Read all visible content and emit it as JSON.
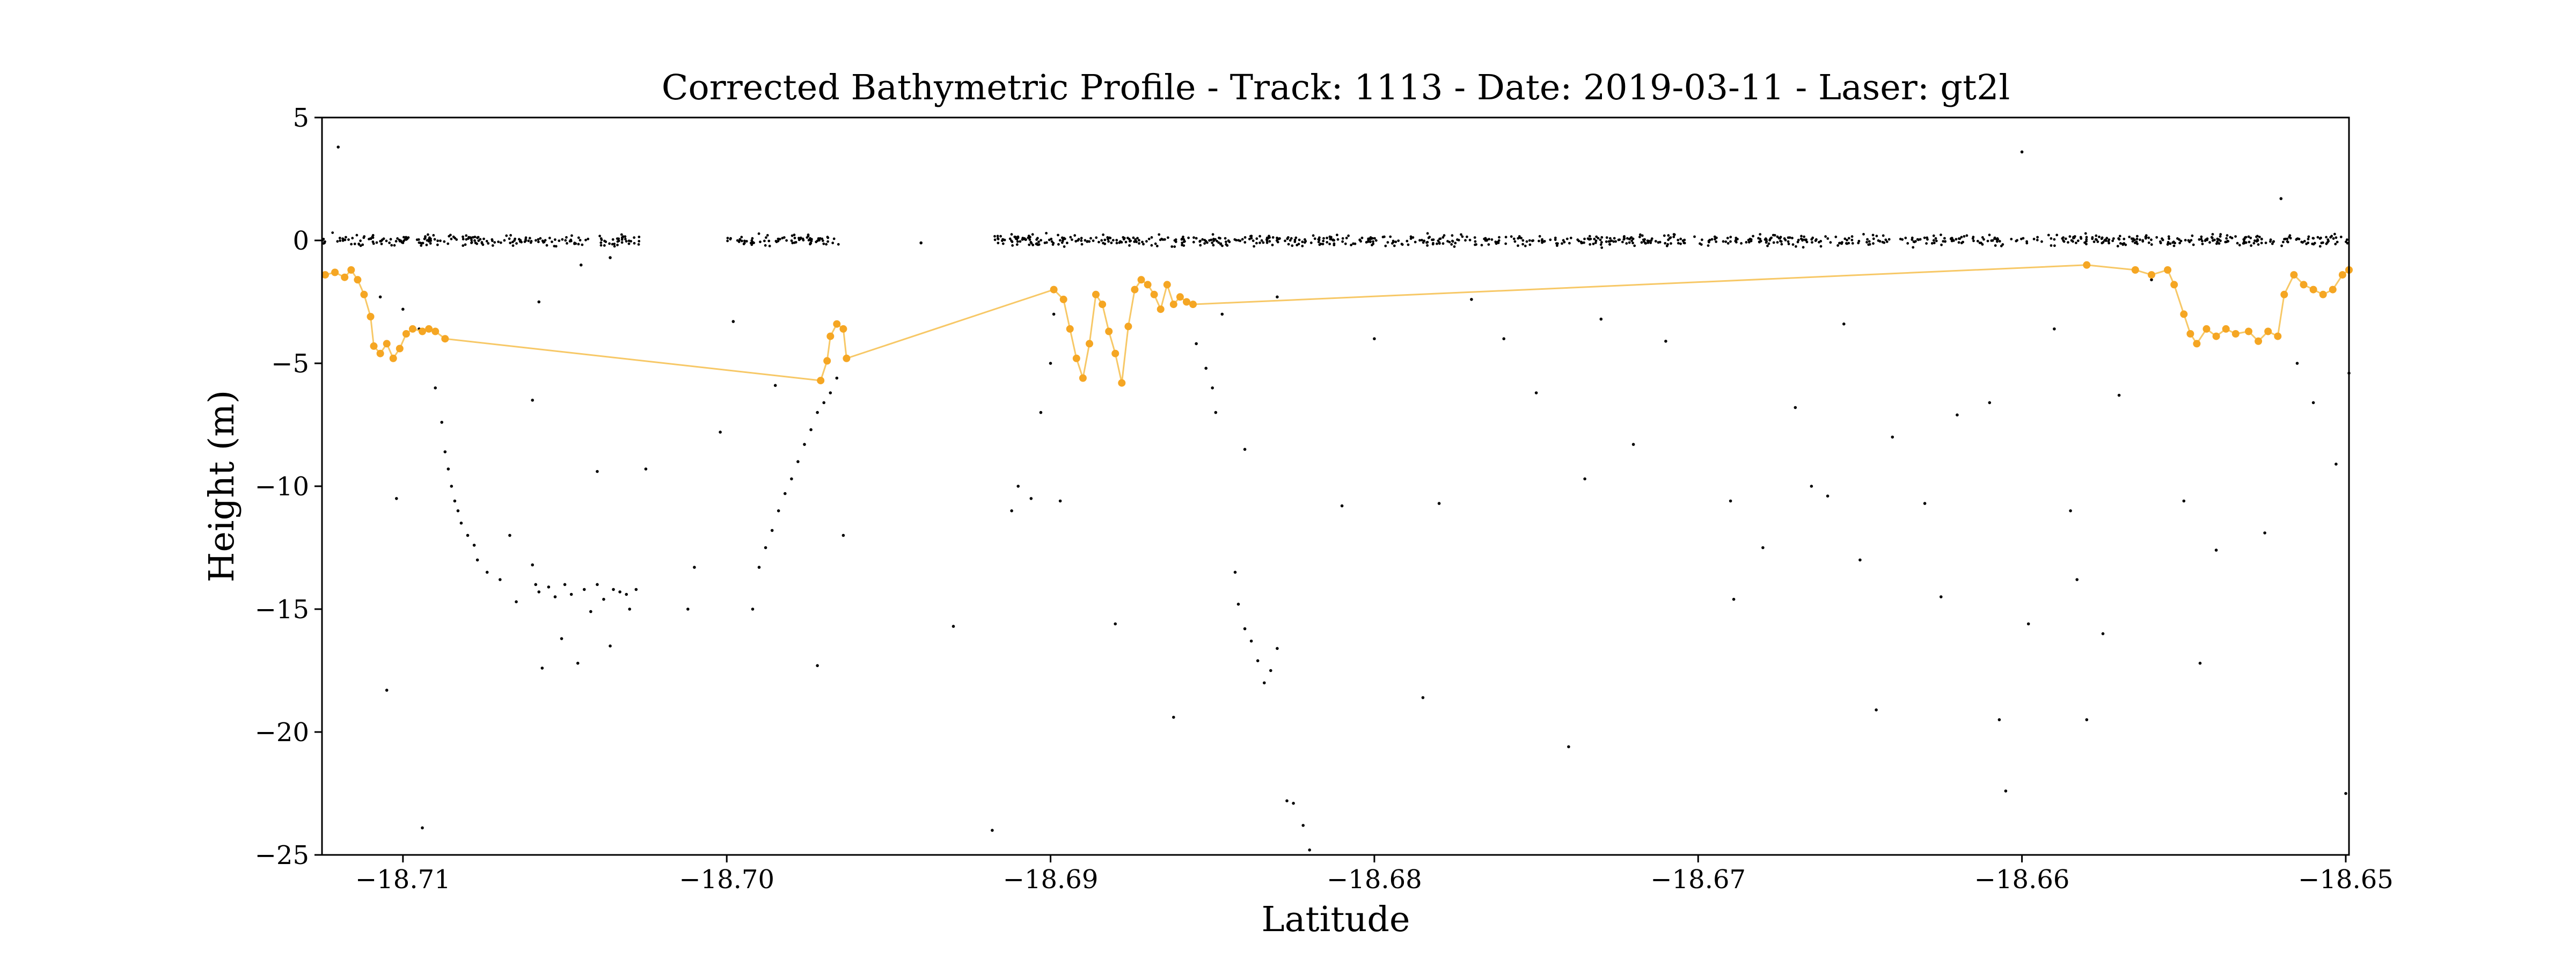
{
  "chart_data": {
    "type": "scatter",
    "title": "Corrected Bathymetric Profile - Track: 1113 - Date: 2019-03-11 - Laser: gt2l",
    "xlabel": "Latitude",
    "ylabel": "Height (m)",
    "xlim": [
      -18.7125,
      -18.6499
    ],
    "ylim": [
      -25,
      5
    ],
    "x_ticks": [
      -18.71,
      -18.7,
      -18.69,
      -18.68,
      -18.67,
      -18.66,
      -18.65
    ],
    "x_tick_labels": [
      "−18.71",
      "−18.70",
      "−18.69",
      "−18.68",
      "−18.67",
      "−18.66",
      "−18.65"
    ],
    "y_ticks": [
      5,
      0,
      -5,
      -10,
      -15,
      -20,
      -25
    ],
    "y_tick_labels": [
      "5",
      "0",
      "−5",
      "−10",
      "−15",
      "−20",
      "−25"
    ],
    "grid": false,
    "legend": "none",
    "colors": {
      "raw": "#000000",
      "bathy": "#f5a623",
      "bathy_line": "#f7c867"
    },
    "series": [
      {
        "kind": "raw photons (black dots)",
        "sea_surface_segments": [
          [
            -18.7125,
            -18.7027
          ],
          [
            -18.7,
            -18.6965
          ],
          [
            -18.6918,
            -18.6499
          ]
        ],
        "sea_surface_height": 0.0,
        "subsurface_points": [
          [
            -18.712,
            3.8
          ],
          [
            -18.7107,
            -2.3
          ],
          [
            -18.7102,
            -10.5
          ],
          [
            -18.71,
            -2.8
          ],
          [
            -18.7095,
            -3.6
          ],
          [
            -18.709,
            -6.0
          ],
          [
            -18.7088,
            -7.4
          ],
          [
            -18.7087,
            -8.6
          ],
          [
            -18.7086,
            -9.3
          ],
          [
            -18.7085,
            -10.0
          ],
          [
            -18.7084,
            -10.6
          ],
          [
            -18.7083,
            -11.0
          ],
          [
            -18.7082,
            -11.5
          ],
          [
            -18.708,
            -12.0
          ],
          [
            -18.7078,
            -12.4
          ],
          [
            -18.7077,
            -13.0
          ],
          [
            -18.7074,
            -13.5
          ],
          [
            -18.707,
            -13.8
          ],
          [
            -18.7067,
            -12.0
          ],
          [
            -18.7065,
            -14.7
          ],
          [
            -18.706,
            -13.2
          ],
          [
            -18.7059,
            -14.0
          ],
          [
            -18.7058,
            -14.3
          ],
          [
            -18.7057,
            -17.4
          ],
          [
            -18.7055,
            -14.1
          ],
          [
            -18.7053,
            -14.5
          ],
          [
            -18.7051,
            -16.2
          ],
          [
            -18.705,
            -14.0
          ],
          [
            -18.7048,
            -14.4
          ],
          [
            -18.7046,
            -17.2
          ],
          [
            -18.7044,
            -14.2
          ],
          [
            -18.7042,
            -15.1
          ],
          [
            -18.704,
            -14.0
          ],
          [
            -18.7038,
            -14.6
          ],
          [
            -18.7036,
            -16.5
          ],
          [
            -18.7035,
            -14.2
          ],
          [
            -18.7033,
            -14.3
          ],
          [
            -18.7031,
            -14.4
          ],
          [
            -18.703,
            -15.0
          ],
          [
            -18.7028,
            -14.2
          ],
          [
            -18.7025,
            -9.3
          ],
          [
            -18.704,
            -9.4
          ],
          [
            -18.706,
            -6.5
          ],
          [
            -18.7058,
            -2.5
          ],
          [
            -18.7036,
            -0.7
          ],
          [
            -18.7045,
            -1.0
          ],
          [
            -18.7105,
            -18.3
          ],
          [
            -18.7094,
            -23.9
          ],
          [
            -18.7012,
            -15.0
          ],
          [
            -18.701,
            -13.3
          ],
          [
            -18.7002,
            -7.8
          ],
          [
            -18.6998,
            -3.3
          ],
          [
            -18.6992,
            -15.0
          ],
          [
            -18.699,
            -13.3
          ],
          [
            -18.6988,
            -12.5
          ],
          [
            -18.6986,
            -11.8
          ],
          [
            -18.6984,
            -11.0
          ],
          [
            -18.6982,
            -10.3
          ],
          [
            -18.698,
            -9.7
          ],
          [
            -18.6978,
            -9.0
          ],
          [
            -18.6976,
            -8.3
          ],
          [
            -18.6974,
            -7.7
          ],
          [
            -18.6972,
            -7.0
          ],
          [
            -18.697,
            -6.6
          ],
          [
            -18.6968,
            -6.2
          ],
          [
            -18.6966,
            -5.6
          ],
          [
            -18.6964,
            -12.0
          ],
          [
            -18.6972,
            -17.3
          ],
          [
            -18.6985,
            -5.9
          ],
          [
            -18.694,
            -0.1
          ],
          [
            -18.693,
            -15.7
          ],
          [
            -18.6918,
            -24.0
          ],
          [
            -18.6912,
            -11.0
          ],
          [
            -18.691,
            -10.0
          ],
          [
            -18.6906,
            -10.5
          ],
          [
            -18.6903,
            -7.0
          ],
          [
            -18.69,
            -5.0
          ],
          [
            -18.6899,
            -3.0
          ],
          [
            -18.6897,
            -10.6
          ],
          [
            -18.688,
            -15.6
          ],
          [
            -18.6862,
            -19.4
          ],
          [
            -18.6855,
            -4.2
          ],
          [
            -18.6852,
            -5.2
          ],
          [
            -18.685,
            -6.0
          ],
          [
            -18.6849,
            -7.0
          ],
          [
            -18.6847,
            -3.0
          ],
          [
            -18.6843,
            -13.5
          ],
          [
            -18.6842,
            -14.8
          ],
          [
            -18.684,
            -15.8
          ],
          [
            -18.6838,
            -16.3
          ],
          [
            -18.6836,
            -17.1
          ],
          [
            -18.6834,
            -18.0
          ],
          [
            -18.6832,
            -17.5
          ],
          [
            -18.683,
            -16.6
          ],
          [
            -18.6827,
            -22.8
          ],
          [
            -18.6825,
            -22.9
          ],
          [
            -18.6822,
            -23.8
          ],
          [
            -18.682,
            -24.8
          ],
          [
            -18.684,
            -8.5
          ],
          [
            -18.683,
            -2.3
          ],
          [
            -18.681,
            -10.8
          ],
          [
            -18.68,
            -4.0
          ],
          [
            -18.6785,
            -18.6
          ],
          [
            -18.678,
            -10.7
          ],
          [
            -18.677,
            -2.4
          ],
          [
            -18.676,
            -4.0
          ],
          [
            -18.675,
            -6.2
          ],
          [
            -18.674,
            -20.6
          ],
          [
            -18.6735,
            -9.7
          ],
          [
            -18.673,
            -3.2
          ],
          [
            -18.672,
            -8.3
          ],
          [
            -18.671,
            -4.1
          ],
          [
            -18.669,
            -10.6
          ],
          [
            -18.6689,
            -14.6
          ],
          [
            -18.668,
            -12.5
          ],
          [
            -18.667,
            -6.8
          ],
          [
            -18.6665,
            -10.0
          ],
          [
            -18.666,
            -10.4
          ],
          [
            -18.6655,
            -3.4
          ],
          [
            -18.665,
            -13.0
          ],
          [
            -18.6645,
            -19.1
          ],
          [
            -18.664,
            -8.0
          ],
          [
            -18.663,
            -10.7
          ],
          [
            -18.6625,
            -14.5
          ],
          [
            -18.662,
            -7.1
          ],
          [
            -18.661,
            -6.6
          ],
          [
            -18.6607,
            -19.5
          ],
          [
            -18.6605,
            -22.4
          ],
          [
            -18.66,
            3.6
          ],
          [
            -18.6598,
            -15.6
          ],
          [
            -18.659,
            -3.6
          ],
          [
            -18.6585,
            -11.0
          ],
          [
            -18.6583,
            -13.8
          ],
          [
            -18.658,
            -19.5
          ],
          [
            -18.6575,
            -16.0
          ],
          [
            -18.657,
            -6.3
          ],
          [
            -18.656,
            -1.6
          ],
          [
            -18.655,
            -10.6
          ],
          [
            -18.6545,
            -17.2
          ],
          [
            -18.654,
            -12.6
          ],
          [
            -18.6525,
            -11.9
          ],
          [
            -18.652,
            1.7
          ],
          [
            -18.6515,
            -5.0
          ],
          [
            -18.651,
            -6.6
          ],
          [
            -18.6503,
            -9.1
          ],
          [
            -18.65,
            -22.5
          ],
          [
            -18.6499,
            -5.4
          ]
        ]
      },
      {
        "kind": "corrected bathymetry (orange dots with connecting line)",
        "points": [
          [
            -18.7124,
            -1.4
          ],
          [
            -18.7121,
            -1.3
          ],
          [
            -18.7118,
            -1.5
          ],
          [
            -18.7116,
            -1.2
          ],
          [
            -18.7114,
            -1.6
          ],
          [
            -18.7112,
            -2.2
          ],
          [
            -18.711,
            -3.1
          ],
          [
            -18.7109,
            -4.3
          ],
          [
            -18.7107,
            -4.6
          ],
          [
            -18.7105,
            -4.2
          ],
          [
            -18.7103,
            -4.8
          ],
          [
            -18.7101,
            -4.4
          ],
          [
            -18.7099,
            -3.8
          ],
          [
            -18.7097,
            -3.6
          ],
          [
            -18.7094,
            -3.7
          ],
          [
            -18.7092,
            -3.6
          ],
          [
            -18.709,
            -3.7
          ],
          [
            -18.7087,
            -4.0
          ],
          [
            -18.6971,
            -5.7
          ],
          [
            -18.6969,
            -4.9
          ],
          [
            -18.6968,
            -3.9
          ],
          [
            -18.6966,
            -3.4
          ],
          [
            -18.6964,
            -3.6
          ],
          [
            -18.6963,
            -4.8
          ],
          [
            -18.6899,
            -2.0
          ],
          [
            -18.6896,
            -2.4
          ],
          [
            -18.6894,
            -3.6
          ],
          [
            -18.6892,
            -4.8
          ],
          [
            -18.689,
            -5.6
          ],
          [
            -18.6888,
            -4.2
          ],
          [
            -18.6886,
            -2.2
          ],
          [
            -18.6884,
            -2.6
          ],
          [
            -18.6882,
            -3.7
          ],
          [
            -18.688,
            -4.6
          ],
          [
            -18.6878,
            -5.8
          ],
          [
            -18.6876,
            -3.5
          ],
          [
            -18.6874,
            -2.0
          ],
          [
            -18.6872,
            -1.6
          ],
          [
            -18.687,
            -1.8
          ],
          [
            -18.6868,
            -2.2
          ],
          [
            -18.6866,
            -2.8
          ],
          [
            -18.6864,
            -1.8
          ],
          [
            -18.6862,
            -2.6
          ],
          [
            -18.686,
            -2.3
          ],
          [
            -18.6858,
            -2.5
          ],
          [
            -18.6856,
            -2.6
          ],
          [
            -18.658,
            -1.0
          ],
          [
            -18.6565,
            -1.2
          ],
          [
            -18.656,
            -1.4
          ],
          [
            -18.6555,
            -1.2
          ],
          [
            -18.6553,
            -1.8
          ],
          [
            -18.655,
            -3.0
          ],
          [
            -18.6548,
            -3.8
          ],
          [
            -18.6546,
            -4.2
          ],
          [
            -18.6543,
            -3.6
          ],
          [
            -18.654,
            -3.9
          ],
          [
            -18.6537,
            -3.6
          ],
          [
            -18.6534,
            -3.8
          ],
          [
            -18.653,
            -3.7
          ],
          [
            -18.6527,
            -4.1
          ],
          [
            -18.6524,
            -3.7
          ],
          [
            -18.6521,
            -3.9
          ],
          [
            -18.6519,
            -2.2
          ],
          [
            -18.6516,
            -1.4
          ],
          [
            -18.6513,
            -1.8
          ],
          [
            -18.651,
            -2.0
          ],
          [
            -18.6507,
            -2.2
          ],
          [
            -18.6504,
            -2.0
          ],
          [
            -18.6501,
            -1.4
          ],
          [
            -18.6499,
            -1.2
          ]
        ]
      }
    ]
  }
}
